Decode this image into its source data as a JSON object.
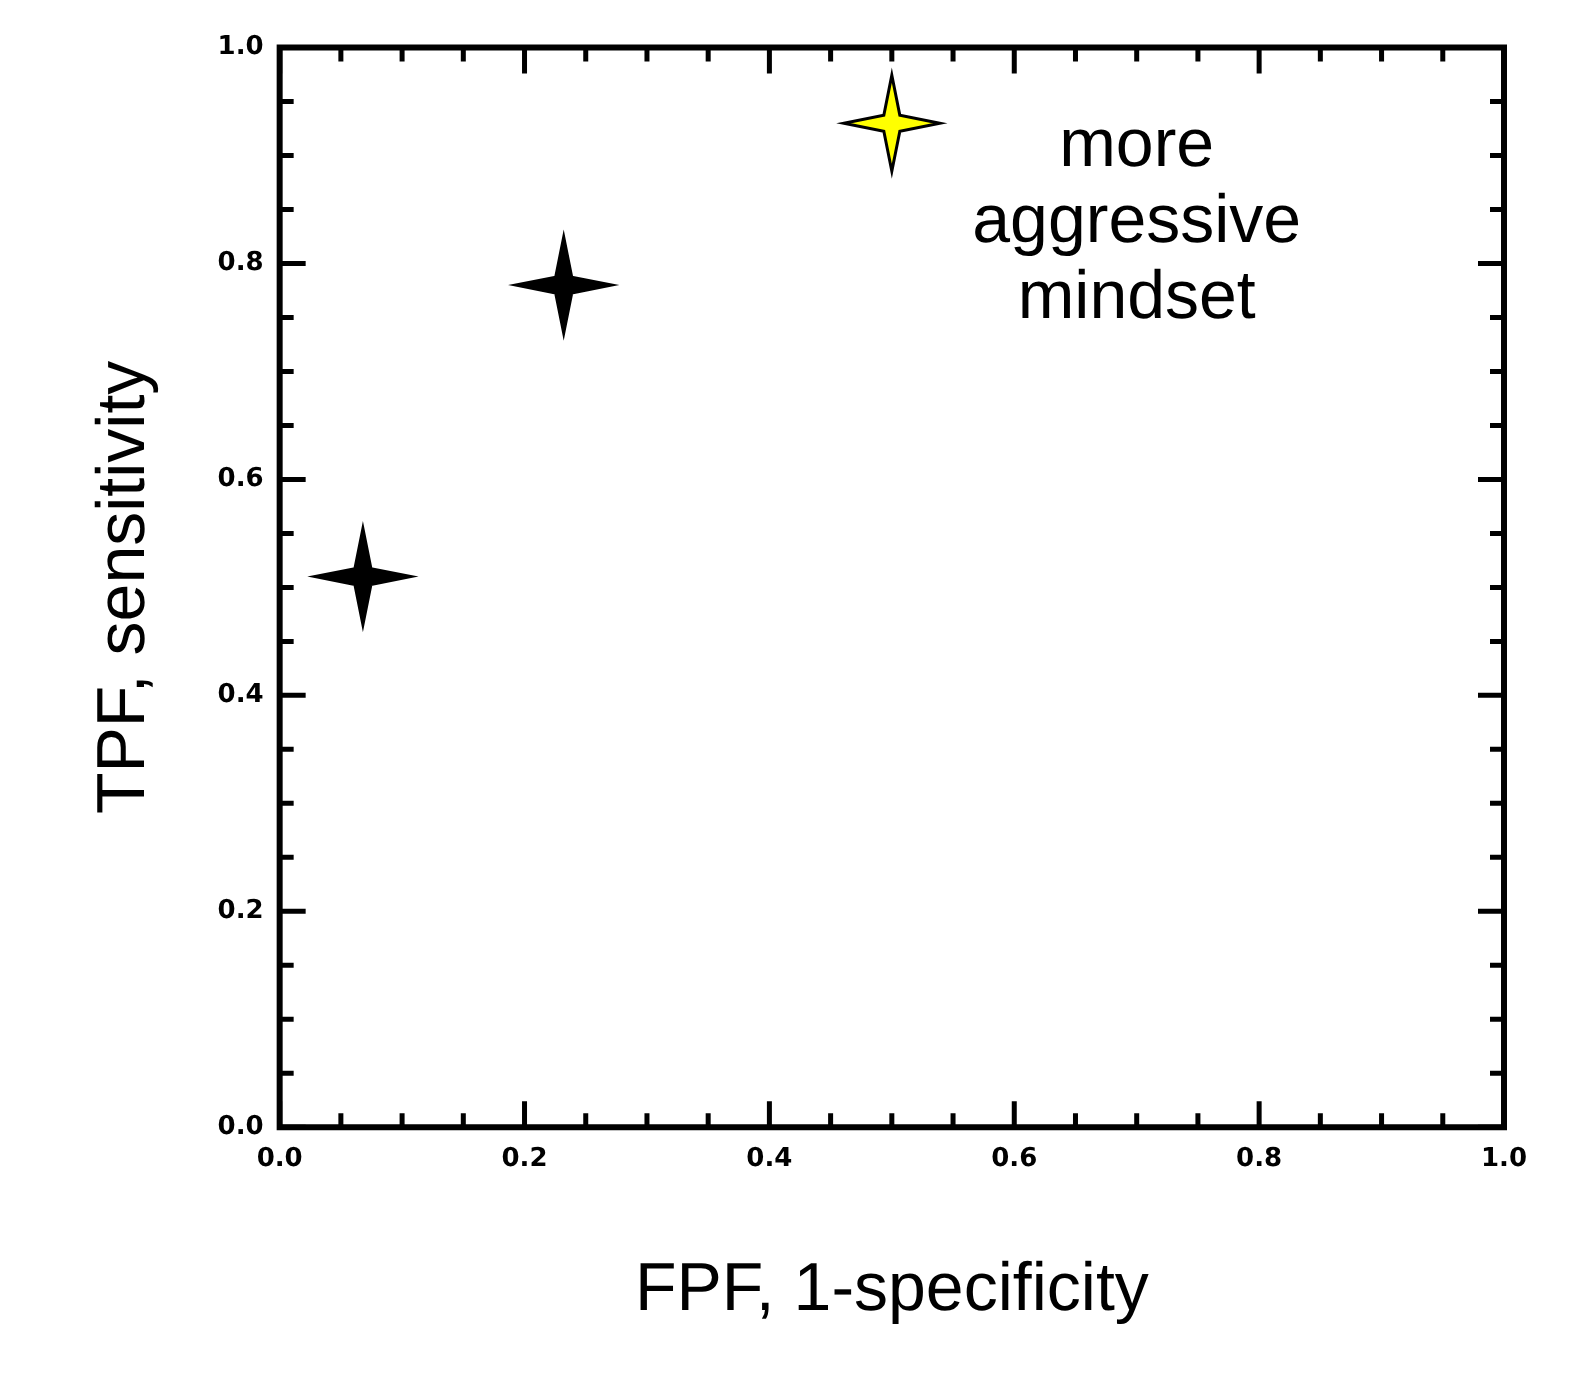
{
  "chart_data": {
    "type": "scatter",
    "xlabel": "FPF, 1-specificity",
    "ylabel": "TPF, sensitivity",
    "marker": "star",
    "grid": false,
    "legend": false,
    "xlim": [
      0,
      1
    ],
    "ylim": [
      0,
      1
    ],
    "xticks": [
      {
        "value": 0,
        "label": "0.0"
      },
      {
        "value": 0.05,
        "label": null
      },
      {
        "value": 0.1,
        "label": null
      },
      {
        "value": 0.15,
        "label": null
      },
      {
        "value": 0.2,
        "label": "0.2"
      },
      {
        "value": 0.25,
        "label": null
      },
      {
        "value": 0.3,
        "label": null
      },
      {
        "value": 0.35,
        "label": null
      },
      {
        "value": 0.4,
        "label": "0.4"
      },
      {
        "value": 0.45,
        "label": null
      },
      {
        "value": 0.5,
        "label": null
      },
      {
        "value": 0.55,
        "label": null
      },
      {
        "value": 0.6,
        "label": "0.6"
      },
      {
        "value": 0.65,
        "label": null
      },
      {
        "value": 0.7,
        "label": null
      },
      {
        "value": 0.75,
        "label": null
      },
      {
        "value": 0.8,
        "label": "0.8"
      },
      {
        "value": 0.85,
        "label": null
      },
      {
        "value": 0.9,
        "label": null
      },
      {
        "value": 0.95,
        "label": null
      },
      {
        "value": 1,
        "label": "1.0"
      }
    ],
    "yticks": [
      {
        "value": 0,
        "label": "0.0"
      },
      {
        "value": 0.05,
        "label": null
      },
      {
        "value": 0.1,
        "label": null
      },
      {
        "value": 0.15,
        "label": null
      },
      {
        "value": 0.2,
        "label": "0.2"
      },
      {
        "value": 0.25,
        "label": null
      },
      {
        "value": 0.3,
        "label": null
      },
      {
        "value": 0.35,
        "label": null
      },
      {
        "value": 0.4,
        "label": "0.4"
      },
      {
        "value": 0.45,
        "label": null
      },
      {
        "value": 0.5,
        "label": null
      },
      {
        "value": 0.55,
        "label": null
      },
      {
        "value": 0.6,
        "label": "0.6"
      },
      {
        "value": 0.65,
        "label": null
      },
      {
        "value": 0.7,
        "label": null
      },
      {
        "value": 0.75,
        "label": null
      },
      {
        "value": 0.8,
        "label": "0.8"
      },
      {
        "value": 0.85,
        "label": null
      },
      {
        "value": 0.9,
        "label": null
      },
      {
        "value": 0.95,
        "label": null
      },
      {
        "value": 1,
        "label": "1.0"
      }
    ],
    "series": [
      {
        "color": "#000000",
        "x": [
          0.068,
          0.232
        ],
        "values": [
          0.51,
          0.78
        ]
      },
      {
        "color": "#ffff00",
        "x": [
          0.5
        ],
        "values": [
          0.93
        ]
      }
    ],
    "annotations": [
      "more\naggressive\nmindset"
    ]
  }
}
